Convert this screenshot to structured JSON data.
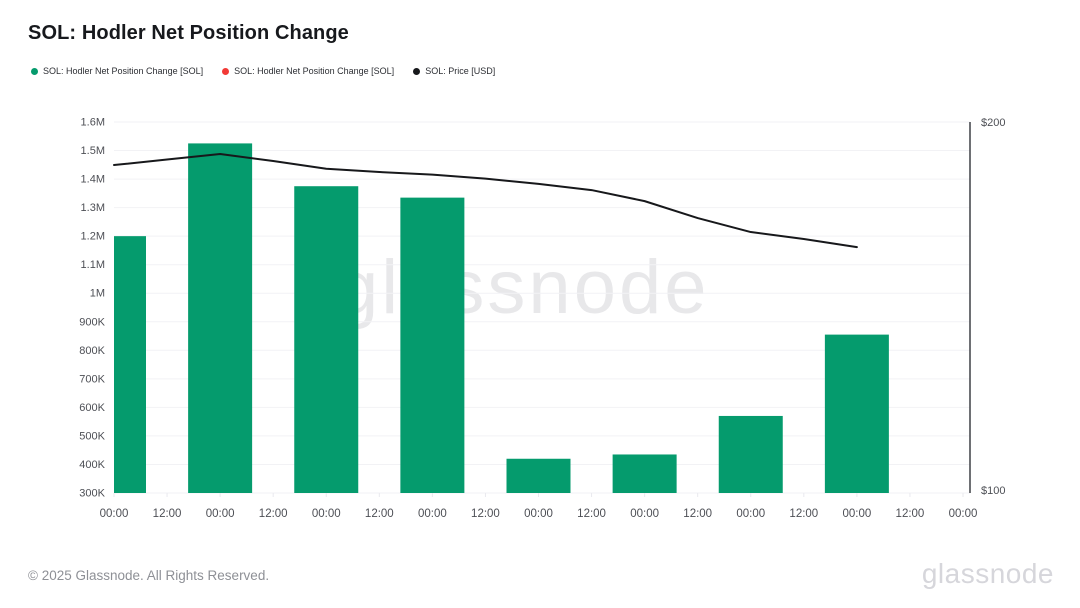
{
  "header": {
    "title": "SOL: Hodler Net Position Change"
  },
  "legend": [
    {
      "label": "SOL: Hodler Net Position Change [SOL]",
      "color": "#059b6d"
    },
    {
      "label": "SOL: Hodler Net Position Change [SOL]",
      "color": "#f23936"
    },
    {
      "label": "SOL: Price [USD]",
      "color": "#17181b"
    }
  ],
  "watermark": "glassnode",
  "footer": {
    "copyright": "© 2025 Glassnode. All Rights Reserved.",
    "logo": "glassnode"
  },
  "chart_data": {
    "type": "bar",
    "title": "SOL: Hodler Net Position Change",
    "grid": "horizontal",
    "legend_position": "top-left",
    "x_tick_labels": [
      "00:00",
      "12:00",
      "00:00",
      "12:00",
      "00:00",
      "12:00",
      "00:00",
      "12:00",
      "00:00",
      "12:00",
      "00:00",
      "12:00",
      "00:00",
      "12:00",
      "00:00",
      "12:00",
      "00:00"
    ],
    "left_axis": {
      "min": 300000,
      "max": 1600000,
      "tick_labels": [
        "300K",
        "400K",
        "500K",
        "600K",
        "700K",
        "800K",
        "900K",
        "1M",
        "1.1M",
        "1.2M",
        "1.3M",
        "1.4M",
        "1.5M",
        "1.6M"
      ],
      "label_values": [
        300000,
        400000,
        500000,
        600000,
        700000,
        800000,
        900000,
        1000000,
        1100000,
        1200000,
        1300000,
        1400000,
        1500000,
        1600000
      ]
    },
    "right_axis": {
      "min": 100,
      "max": 200,
      "tick_labels": [
        "$200",
        "$100"
      ]
    },
    "series": [
      {
        "name": "SOL: Hodler Net Position Change [SOL]",
        "type": "bar",
        "color": "#059b6d",
        "axis": "left",
        "x_tick_index": [
          0,
          2,
          4,
          6,
          8,
          10,
          12,
          14
        ],
        "values": [
          1200000,
          1525000,
          1375000,
          1335000,
          420000,
          435000,
          570000,
          855000
        ]
      },
      {
        "name": "SOL: Hodler Net Position Change [SOL]",
        "type": "bar",
        "color": "#f23936",
        "axis": "left",
        "x_tick_index": [],
        "values": []
      },
      {
        "name": "SOL: Price [USD]",
        "type": "line",
        "color": "#17181b",
        "axis": "right",
        "x_tick_index": [
          0,
          1,
          2,
          3,
          4,
          5,
          6,
          7,
          8,
          9,
          10,
          11,
          12,
          13,
          14
        ],
        "values": [
          188.3,
          189.8,
          191.3,
          189.4,
          187.3,
          186.4,
          185.7,
          184.6,
          183.2,
          181.5,
          178.5,
          173.9,
          170.1,
          168.2,
          166.0
        ]
      }
    ]
  }
}
